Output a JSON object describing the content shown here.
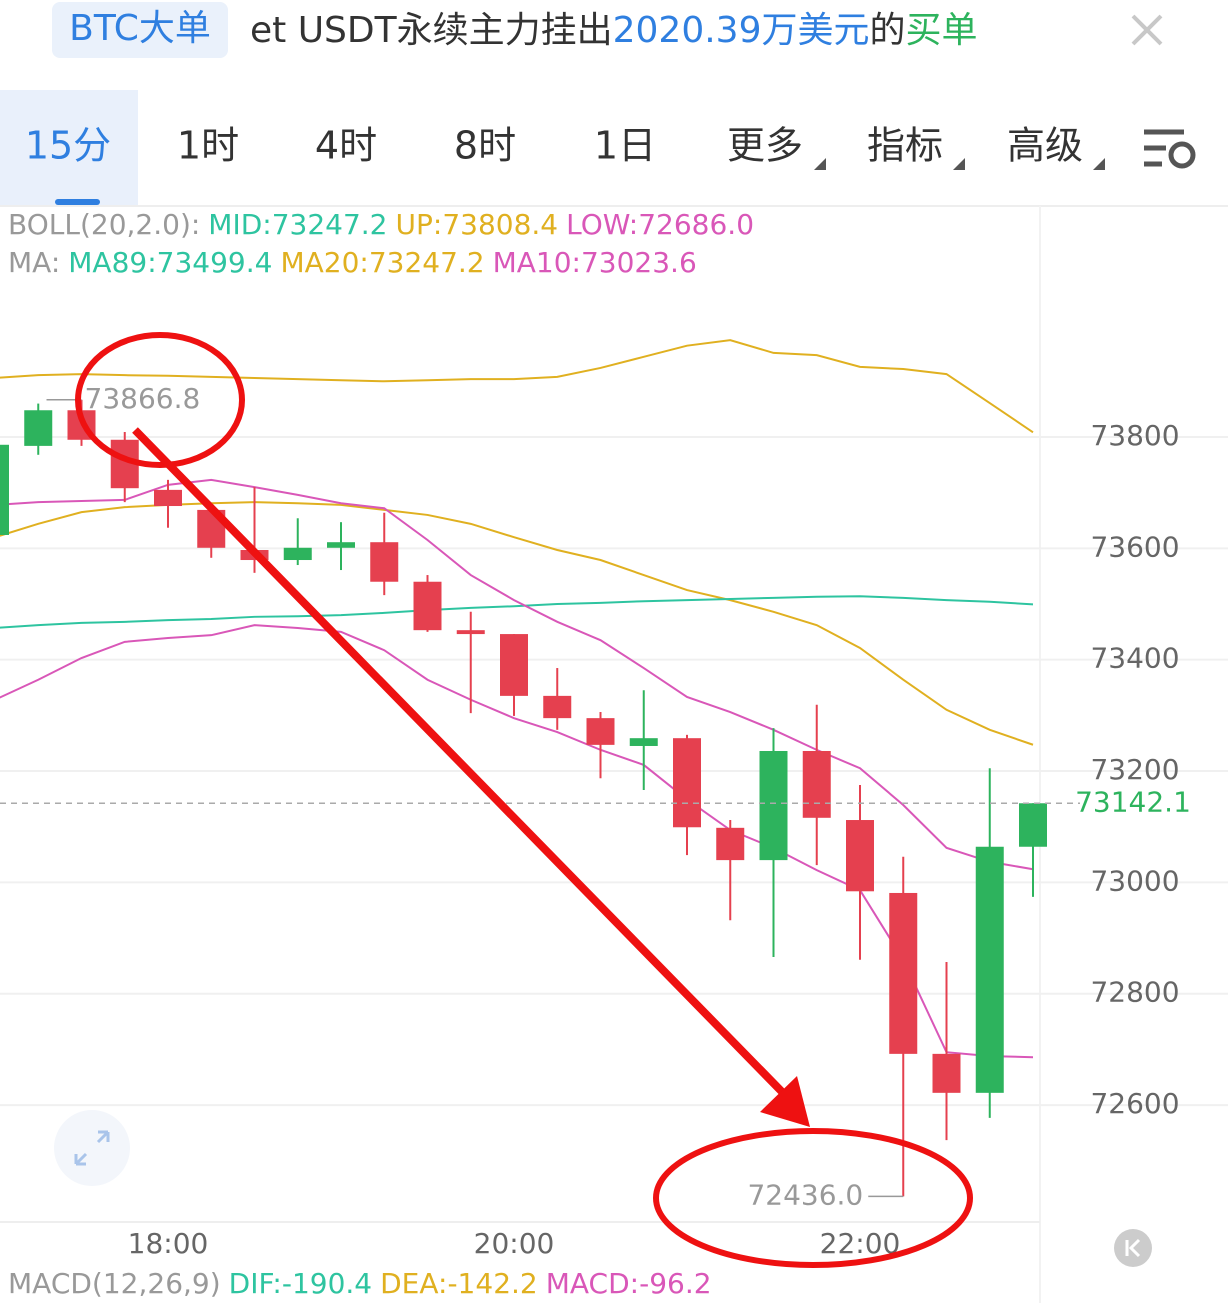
{
  "header": {
    "tag": "BTC大单",
    "message": [
      {
        "text": "et USDT永续主力挂出",
        "color": "#333333"
      },
      {
        "text": "2020.39万美元",
        "color": "#2f7fe0"
      },
      {
        "text": "的",
        "color": "#333333"
      },
      {
        "text": "买单",
        "color": "#2db35d"
      }
    ]
  },
  "tabs": [
    "15分",
    "1时",
    "4时",
    "8时",
    "1日",
    "更多",
    "指标",
    "高级"
  ],
  "chart_data": {
    "type": "candlestick",
    "legend_rows": [
      [
        {
          "text": "BOLL(20,2.0):",
          "color": "#999999"
        },
        {
          "text": "MID:73247.2",
          "color": "#2ec4a0"
        },
        {
          "text": "UP:73808.4",
          "color": "#e0b020"
        },
        {
          "text": "LOW:72686.0",
          "color": "#d957b8"
        }
      ],
      [
        {
          "text": "MA:",
          "color": "#999999"
        },
        {
          "text": "MA89:73499.4",
          "color": "#2ec4a0"
        },
        {
          "text": "MA20:73247.2",
          "color": "#e0b020"
        },
        {
          "text": "MA10:73023.6",
          "color": "#d957b8"
        }
      ]
    ],
    "categories": [
      null,
      null,
      null,
      null,
      "18:00",
      null,
      null,
      null,
      null,
      null,
      null,
      null,
      "20:00",
      null,
      null,
      null,
      null,
      null,
      null,
      null,
      "22:00",
      null,
      null,
      null,
      null
    ],
    "open": [
      73624,
      73784,
      73848,
      73795,
      73705,
      73669,
      73597,
      73579,
      73601,
      73611,
      73540,
      73453,
      73446,
      73335,
      73295,
      73245,
      73259,
      73098,
      73040,
      73236,
      73112,
      72981,
      72692,
      72622,
      73064
    ],
    "high": [
      73795,
      73860,
      73866.8,
      73809,
      73723,
      73672,
      73710,
      73654,
      73647,
      73664,
      73552,
      73486,
      73446,
      73385,
      73306,
      73345,
      73265,
      73112,
      73277,
      73319,
      73175,
      73046,
      72857,
      73205,
      73142.1
    ],
    "low": [
      73615,
      73768,
      73784,
      73683,
      73637,
      73583,
      73556,
      73570,
      73561,
      73516,
      73450,
      73304,
      73299,
      73274,
      73187,
      73166,
      73049,
      72932,
      72866,
      73031,
      72861,
      72436,
      72537,
      72577,
      72974
    ],
    "close": [
      73786,
      73848,
      73795,
      73708,
      73676,
      73601,
      73579,
      73601,
      73611,
      73540,
      73453,
      73446,
      73335,
      73295,
      73247,
      73259,
      73099,
      73040,
      73236,
      73116,
      72984,
      72692,
      72622,
      73064,
      73142.1
    ],
    "up_color": "#2db35d",
    "down_color": "#e5404f",
    "lines": [
      {
        "name": "UP",
        "color": "#e0b020",
        "values": [
          73906,
          73911,
          73913,
          73911,
          73910,
          73908,
          73906,
          73904,
          73902,
          73900,
          73902,
          73904,
          73904,
          73908,
          73924,
          73944,
          73964,
          73974,
          73951,
          73947,
          73926,
          73922,
          73913,
          73861,
          73808.4
        ]
      },
      {
        "name": "MID",
        "color": "#e0b020",
        "values": [
          73620,
          73644,
          73665,
          73674,
          73678,
          73681,
          73683,
          73681,
          73678,
          73669,
          73660,
          73644,
          73620,
          73597,
          73579,
          73552,
          73525,
          73507,
          73486,
          73462,
          73421,
          73364,
          73310,
          73274,
          73247.2
        ]
      },
      {
        "name": "MA89",
        "color": "#2ec4a0",
        "values": [
          73457,
          73462,
          73466,
          73468,
          73471,
          73473,
          73477,
          73478,
          73480,
          73484,
          73489,
          73493,
          73496,
          73500,
          73502,
          73505,
          73507,
          73509,
          73511,
          73513,
          73514,
          73511,
          73507,
          73504,
          73499.4
        ]
      },
      {
        "name": "MA10",
        "color": "#d957b8",
        "values": [
          73678,
          73683,
          73685,
          73687,
          73714,
          73723,
          73710,
          73696,
          73681,
          73672,
          73615,
          73552,
          73507,
          73468,
          73435,
          73385,
          73333,
          73306,
          73274,
          73238,
          73205,
          73139,
          73062,
          73037,
          73023.6
        ]
      },
      {
        "name": "LOW",
        "color": "#d957b8",
        "values": [
          73328,
          73364,
          73403,
          73432,
          73439,
          73444,
          73462,
          73457,
          73450,
          73417,
          73364,
          73328,
          73295,
          73270,
          73238,
          73211,
          73149,
          73094,
          73062,
          73022,
          72986,
          72861,
          72695,
          72688,
          72686
        ]
      }
    ],
    "ylim": [
      72390,
      74064
    ],
    "yticks": [
      72600,
      72800,
      73000,
      73200,
      73400,
      73600,
      73800
    ],
    "last_price": 73142.1,
    "max_label": 73866.8,
    "min_label": {
      "value": 72436,
      "label": "72436.0"
    },
    "grid": true,
    "macd_row": [
      {
        "text": "MACD(12,26,9)",
        "color": "#999999"
      },
      {
        "text": "DIF:-190.4",
        "color": "#2ec4a0"
      },
      {
        "text": "DEA:-142.2",
        "color": "#e0b020"
      },
      {
        "text": "MACD:-96.2",
        "color": "#d957b8"
      }
    ]
  }
}
